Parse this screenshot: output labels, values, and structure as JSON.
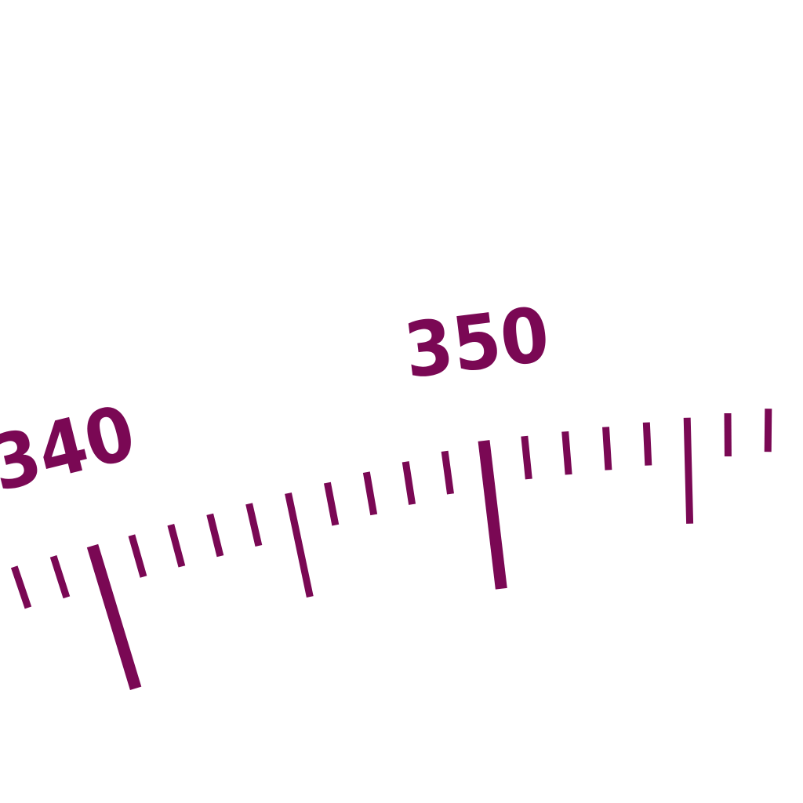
{
  "compass_rose": {
    "color": "#7a0854",
    "labels": [
      "340",
      "350"
    ],
    "label_values": [
      340,
      350
    ],
    "visible_range_deg": [
      338,
      357
    ],
    "minor_tick_step_deg": 1,
    "mid_tick_step_deg": 5,
    "major_tick_step_deg": 10
  }
}
